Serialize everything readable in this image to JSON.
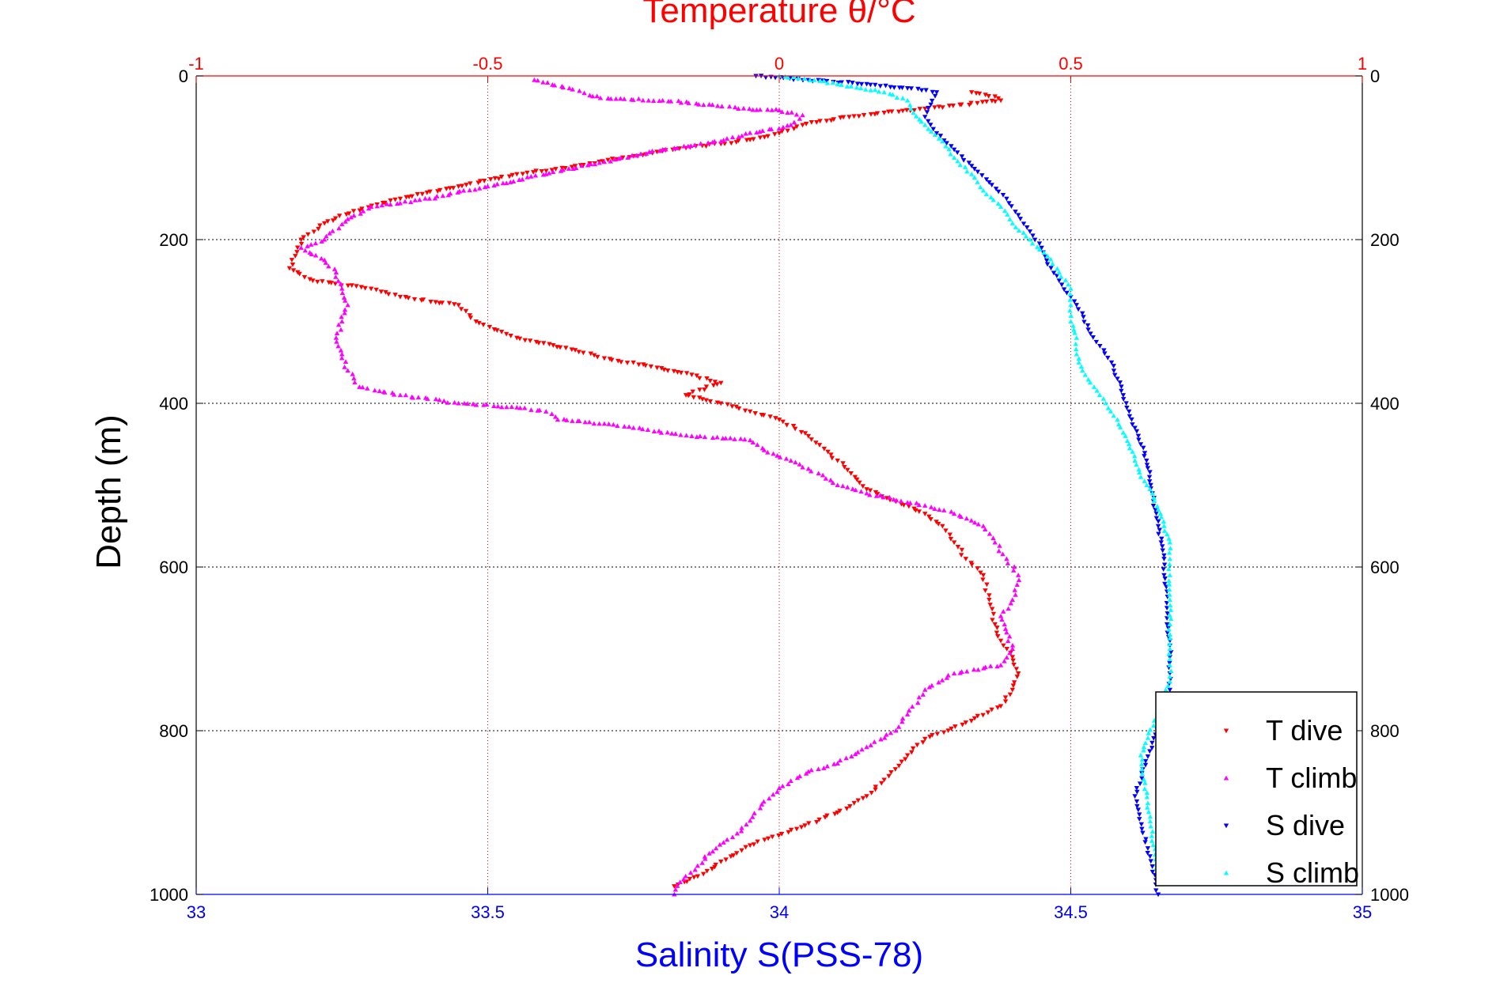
{
  "chart_data": {
    "type": "scatter",
    "title": "",
    "top_axis": {
      "label": "Temperature θ/°C",
      "range": [
        -1,
        1
      ],
      "ticks": [
        "-1",
        "-0.5",
        "0",
        "0.5",
        "1"
      ],
      "color": "#ff0000"
    },
    "bottom_axis": {
      "label": "Salinity S(PSS-78)",
      "range": [
        33,
        35
      ],
      "ticks": [
        "33",
        "33.5",
        "34",
        "34.5",
        "35"
      ],
      "color": "#0000ff"
    },
    "y_axis": {
      "label": "Depth (m)",
      "range": [
        0,
        1000
      ],
      "reversed": true,
      "ticks": [
        "0",
        "200",
        "400",
        "600",
        "800",
        "1000"
      ]
    },
    "grid": true,
    "legend_position": "bottom-right",
    "legend": [
      "T dive",
      "T climb",
      "S dive",
      "S climb"
    ],
    "series": [
      {
        "name": "T dive",
        "axis": "temperature",
        "color": "#ff0000",
        "marker": "triangle-down",
        "points": [
          [
            0.33,
            20
          ],
          [
            0.37,
            25
          ],
          [
            0.38,
            30
          ],
          [
            0.25,
            40
          ],
          [
            0.18,
            45
          ],
          [
            0.12,
            50
          ],
          [
            0.07,
            55
          ],
          [
            0.04,
            60
          ],
          [
            0.0,
            70
          ],
          [
            -0.05,
            78
          ],
          [
            -0.1,
            83
          ],
          [
            -0.16,
            88
          ],
          [
            -0.25,
            98
          ],
          [
            -0.35,
            110
          ],
          [
            -0.45,
            120
          ],
          [
            -0.55,
            135
          ],
          [
            -0.65,
            150
          ],
          [
            -0.73,
            165
          ],
          [
            -0.78,
            180
          ],
          [
            -0.82,
            200
          ],
          [
            -0.83,
            220
          ],
          [
            -0.84,
            235
          ],
          [
            -0.8,
            250
          ],
          [
            -0.7,
            260
          ],
          [
            -0.65,
            270
          ],
          [
            -0.55,
            280
          ],
          [
            -0.52,
            300
          ],
          [
            -0.45,
            320
          ],
          [
            -0.35,
            335
          ],
          [
            -0.3,
            345
          ],
          [
            -0.22,
            355
          ],
          [
            -0.15,
            365
          ],
          [
            -0.1,
            375
          ],
          [
            -0.16,
            390
          ],
          [
            -0.1,
            400
          ],
          [
            -0.05,
            410
          ],
          [
            0.0,
            420
          ],
          [
            0.05,
            440
          ],
          [
            0.1,
            470
          ],
          [
            0.13,
            490
          ],
          [
            0.15,
            505
          ],
          [
            0.2,
            520
          ],
          [
            0.25,
            535
          ],
          [
            0.28,
            550
          ],
          [
            0.3,
            570
          ],
          [
            0.32,
            590
          ],
          [
            0.35,
            610
          ],
          [
            0.36,
            640
          ],
          [
            0.37,
            670
          ],
          [
            0.38,
            690
          ],
          [
            0.4,
            710
          ],
          [
            0.41,
            730
          ],
          [
            0.4,
            750
          ],
          [
            0.38,
            770
          ],
          [
            0.32,
            790
          ],
          [
            0.25,
            810
          ],
          [
            0.22,
            830
          ],
          [
            0.18,
            860
          ],
          [
            0.15,
            880
          ],
          [
            0.1,
            900
          ],
          [
            0.03,
            920
          ],
          [
            -0.05,
            940
          ],
          [
            -0.1,
            960
          ],
          [
            -0.13,
            975
          ],
          [
            -0.18,
            990
          ]
        ]
      },
      {
        "name": "T climb",
        "axis": "temperature",
        "color": "#ff00ff",
        "marker": "triangle-up",
        "points": [
          [
            -0.42,
            5
          ],
          [
            -0.36,
            15
          ],
          [
            -0.32,
            25
          ],
          [
            -0.28,
            28
          ],
          [
            -0.2,
            30
          ],
          [
            -0.12,
            35
          ],
          [
            -0.07,
            40
          ],
          [
            0.0,
            42
          ],
          [
            0.04,
            48
          ],
          [
            0.02,
            60
          ],
          [
            -0.08,
            75
          ],
          [
            -0.1,
            80
          ],
          [
            -0.2,
            90
          ],
          [
            -0.3,
            105
          ],
          [
            -0.4,
            120
          ],
          [
            -0.5,
            135
          ],
          [
            -0.6,
            150
          ],
          [
            -0.7,
            160
          ],
          [
            -0.74,
            175
          ],
          [
            -0.78,
            200
          ],
          [
            -0.82,
            210
          ],
          [
            -0.78,
            225
          ],
          [
            -0.76,
            240
          ],
          [
            -0.75,
            260
          ],
          [
            -0.74,
            280
          ],
          [
            -0.75,
            300
          ],
          [
            -0.76,
            320
          ],
          [
            -0.75,
            340
          ],
          [
            -0.74,
            360
          ],
          [
            -0.72,
            380
          ],
          [
            -0.65,
            390
          ],
          [
            -0.55,
            400
          ],
          [
            -0.45,
            405
          ],
          [
            -0.4,
            410
          ],
          [
            -0.38,
            420
          ],
          [
            -0.3,
            425
          ],
          [
            -0.25,
            430
          ],
          [
            -0.15,
            440
          ],
          [
            -0.05,
            445
          ],
          [
            -0.02,
            460
          ],
          [
            0.02,
            470
          ],
          [
            0.05,
            480
          ],
          [
            0.1,
            500
          ],
          [
            0.15,
            510
          ],
          [
            0.25,
            525
          ],
          [
            0.3,
            535
          ],
          [
            0.35,
            550
          ],
          [
            0.37,
            570
          ],
          [
            0.39,
            590
          ],
          [
            0.41,
            610
          ],
          [
            0.4,
            640
          ],
          [
            0.38,
            660
          ],
          [
            0.39,
            680
          ],
          [
            0.4,
            700
          ],
          [
            0.38,
            720
          ],
          [
            0.3,
            730
          ],
          [
            0.25,
            750
          ],
          [
            0.22,
            780
          ],
          [
            0.2,
            800
          ],
          [
            0.15,
            820
          ],
          [
            0.1,
            840
          ],
          [
            0.05,
            850
          ],
          [
            0.0,
            870
          ],
          [
            -0.03,
            890
          ],
          [
            -0.05,
            910
          ],
          [
            -0.08,
            930
          ],
          [
            -0.12,
            950
          ],
          [
            -0.14,
            965
          ],
          [
            -0.17,
            985
          ],
          [
            -0.18,
            1000
          ]
        ]
      },
      {
        "name": "S dive",
        "axis": "salinity",
        "color": "#0000ff",
        "marker": "triangle-down",
        "points": [
          [
            33.96,
            0
          ],
          [
            34.05,
            5
          ],
          [
            34.15,
            10
          ],
          [
            34.22,
            15
          ],
          [
            34.27,
            20
          ],
          [
            34.26,
            35
          ],
          [
            34.25,
            50
          ],
          [
            34.27,
            70
          ],
          [
            34.3,
            90
          ],
          [
            34.33,
            110
          ],
          [
            34.36,
            130
          ],
          [
            34.39,
            150
          ],
          [
            34.41,
            170
          ],
          [
            34.43,
            190
          ],
          [
            34.45,
            210
          ],
          [
            34.46,
            230
          ],
          [
            34.48,
            250
          ],
          [
            34.5,
            270
          ],
          [
            34.52,
            290
          ],
          [
            34.53,
            310
          ],
          [
            34.55,
            330
          ],
          [
            34.57,
            350
          ],
          [
            34.58,
            370
          ],
          [
            34.59,
            390
          ],
          [
            34.6,
            410
          ],
          [
            34.61,
            430
          ],
          [
            34.62,
            450
          ],
          [
            34.63,
            470
          ],
          [
            34.635,
            490
          ],
          [
            34.64,
            510
          ],
          [
            34.645,
            530
          ],
          [
            34.65,
            550
          ],
          [
            34.655,
            570
          ],
          [
            34.66,
            590
          ],
          [
            34.66,
            610
          ],
          [
            34.665,
            630
          ],
          [
            34.665,
            650
          ],
          [
            34.665,
            670
          ],
          [
            34.67,
            690
          ],
          [
            34.67,
            710
          ],
          [
            34.67,
            730
          ],
          [
            34.67,
            750
          ],
          [
            34.61,
            880
          ],
          [
            34.65,
            1000
          ]
        ]
      },
      {
        "name": "S climb",
        "axis": "salinity",
        "color": "#00ffff",
        "marker": "triangle-up",
        "points": [
          [
            34.0,
            0
          ],
          [
            34.06,
            5
          ],
          [
            34.1,
            10
          ],
          [
            34.14,
            15
          ],
          [
            34.18,
            20
          ],
          [
            34.22,
            30
          ],
          [
            34.23,
            45
          ],
          [
            34.25,
            60
          ],
          [
            34.28,
            80
          ],
          [
            34.3,
            100
          ],
          [
            34.33,
            120
          ],
          [
            34.35,
            140
          ],
          [
            34.38,
            160
          ],
          [
            34.4,
            180
          ],
          [
            34.43,
            200
          ],
          [
            34.46,
            220
          ],
          [
            34.48,
            240
          ],
          [
            34.5,
            260
          ],
          [
            34.5,
            280
          ],
          [
            34.5,
            300
          ],
          [
            34.51,
            320
          ],
          [
            34.51,
            340
          ],
          [
            34.52,
            360
          ],
          [
            34.54,
            380
          ],
          [
            34.56,
            400
          ],
          [
            34.58,
            420
          ],
          [
            34.6,
            450
          ],
          [
            34.61,
            470
          ],
          [
            34.62,
            490
          ],
          [
            34.64,
            510
          ],
          [
            34.65,
            530
          ],
          [
            34.66,
            550
          ],
          [
            34.67,
            570
          ],
          [
            34.67,
            590
          ],
          [
            34.67,
            610
          ],
          [
            34.67,
            640
          ],
          [
            34.67,
            670
          ],
          [
            34.67,
            700
          ],
          [
            34.67,
            720
          ],
          [
            34.67,
            740
          ],
          [
            34.62,
            830
          ],
          [
            34.65,
            980
          ]
        ]
      }
    ]
  }
}
